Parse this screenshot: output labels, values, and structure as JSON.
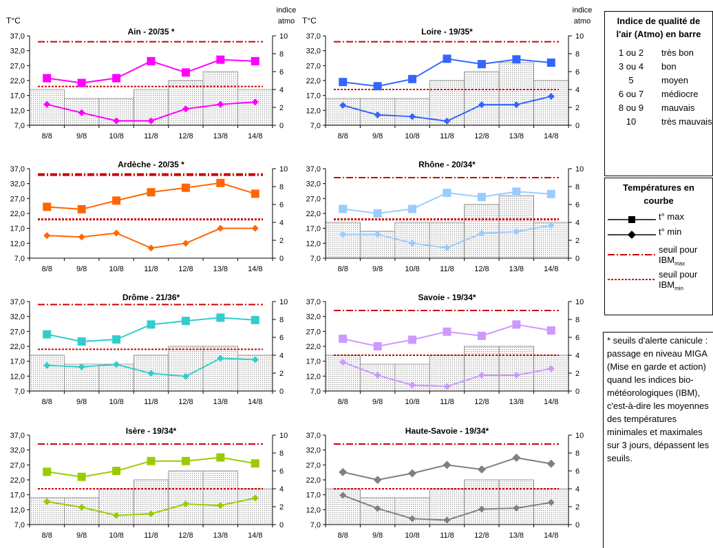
{
  "axis_labels": {
    "y_left": "T°C",
    "y_right_line1": "indice",
    "y_right_line2": "atmo"
  },
  "chart_data": [
    {
      "type": "bar+line",
      "title": "Ain - 20/35 *",
      "color": "#ff00ff",
      "marker": "square",
      "categories": [
        "8/8",
        "9/8",
        "10/8",
        "11/8",
        "12/8",
        "13/8",
        "14/8"
      ],
      "atmo": [
        4,
        3,
        3,
        4,
        5,
        6,
        4
      ],
      "tmax": [
        22.8,
        21.2,
        22.8,
        28.5,
        24.7,
        29.0,
        28.5
      ],
      "tmin": [
        14.0,
        11.2,
        8.5,
        8.5,
        12.5,
        14.0,
        14.8
      ],
      "ibm_max": 35,
      "ibm_min": 20,
      "ylim": [
        7,
        37
      ],
      "yticks": [
        "7,0",
        "12,0",
        "17,0",
        "22,0",
        "27,0",
        "32,0",
        "37,0"
      ],
      "y2lim": [
        0,
        10
      ],
      "y2ticks": [
        "0",
        "2",
        "4",
        "6",
        "8",
        "10"
      ]
    },
    {
      "type": "bar+line",
      "title": "Loire - 19/35*",
      "color": "#3366ff",
      "marker": "square",
      "categories": [
        "8/8",
        "9/8",
        "10/8",
        "11/8",
        "12/8",
        "13/8",
        "14/8"
      ],
      "atmo": [
        3,
        3,
        3,
        5,
        6,
        7,
        5
      ],
      "tmax": [
        21.5,
        20.1,
        22.5,
        29.3,
        27.5,
        29.1,
        28.0
      ],
      "tmin": [
        13.7,
        10.5,
        9.9,
        8.4,
        13.9,
        13.9,
        16.7
      ],
      "ibm_max": 35,
      "ibm_min": 19,
      "ylim": [
        7,
        37
      ],
      "yticks": [
        "7,0",
        "12,0",
        "17,0",
        "22,0",
        "27,0",
        "32,0",
        "37,0"
      ],
      "y2lim": [
        0,
        10
      ],
      "y2ticks": [
        "0",
        "2",
        "4",
        "6",
        "8",
        "10"
      ]
    },
    {
      "type": "bar+line",
      "title": "Ardèche - 20/35 *",
      "color": "#ff6600",
      "marker": "square",
      "categories": [
        "8/8",
        "9/8",
        "10/8",
        "11/8",
        "12/8",
        "13/8",
        "14/8"
      ],
      "atmo": [],
      "threshold_style": "thick",
      "tmax": [
        24.2,
        23.4,
        26.3,
        29.1,
        30.6,
        32.2,
        28.6
      ],
      "tmin": [
        14.6,
        14.1,
        15.4,
        10.4,
        12.0,
        17.0,
        17.0
      ],
      "ibm_max": 35,
      "ibm_min": 20,
      "ylim": [
        7,
        37
      ],
      "yticks": [
        "7,0",
        "12,0",
        "17,0",
        "22,0",
        "27,0",
        "32,0",
        "37,0"
      ],
      "y2lim": [
        0,
        10
      ],
      "y2ticks": [
        "0",
        "2",
        "4",
        "6",
        "8",
        "10"
      ]
    },
    {
      "type": "bar+line",
      "title": "Rhône - 20/34*",
      "color": "#99ccff",
      "marker": "square",
      "categories": [
        "8/8",
        "9/8",
        "10/8",
        "11/8",
        "12/8",
        "13/8",
        "14/8"
      ],
      "atmo": [
        4,
        3,
        4,
        4,
        6,
        7,
        4
      ],
      "threshold_min_style": "thick",
      "tmax": [
        23.5,
        22.0,
        23.5,
        28.9,
        27.5,
        29.3,
        28.5
      ],
      "tmin": [
        15.0,
        15.0,
        12.0,
        10.5,
        15.3,
        15.9,
        18.0
      ],
      "ibm_max": 34,
      "ibm_min": 20,
      "ylim": [
        7,
        37
      ],
      "yticks": [
        "7,0",
        "12,0",
        "17,0",
        "22,0",
        "27,0",
        "32,0",
        "37,0"
      ],
      "y2lim": [
        0,
        10
      ],
      "y2ticks": [
        "0",
        "2",
        "4",
        "6",
        "8",
        "10"
      ]
    },
    {
      "type": "bar+line",
      "title": "Drôme - 21/36*",
      "color": "#33cccc",
      "marker": "square",
      "categories": [
        "8/8",
        "9/8",
        "10/8",
        "11/8",
        "12/8",
        "13/8",
        "14/8"
      ],
      "atmo": [
        4,
        3,
        3,
        4,
        5,
        5,
        4
      ],
      "tmax": [
        26.0,
        23.6,
        24.3,
        29.3,
        30.5,
        31.6,
        30.8
      ],
      "tmin": [
        15.6,
        15.1,
        15.9,
        12.9,
        11.9,
        18.0,
        17.5
      ],
      "ibm_max": 36,
      "ibm_min": 21,
      "ylim": [
        7,
        37
      ],
      "yticks": [
        "7,0",
        "12,0",
        "17,0",
        "22,0",
        "27,0",
        "32,0",
        "37,0"
      ],
      "y2lim": [
        0,
        10
      ],
      "y2ticks": [
        "0",
        "2",
        "4",
        "6",
        "8",
        "10"
      ]
    },
    {
      "type": "bar+line",
      "title": "Savoie - 19/34*",
      "color": "#cc99ff",
      "marker": "square",
      "categories": [
        "8/8",
        "9/8",
        "10/8",
        "11/8",
        "12/8",
        "13/8",
        "14/8"
      ],
      "atmo": [
        4,
        3,
        3,
        4,
        5,
        5,
        4
      ],
      "tmax": [
        24.5,
        22.0,
        24.2,
        26.9,
        25.5,
        29.3,
        27.3
      ],
      "tmin": [
        16.7,
        12.3,
        9.0,
        8.5,
        12.3,
        12.3,
        14.5
      ],
      "ibm_max": 34,
      "ibm_min": 19,
      "ylim": [
        7,
        37
      ],
      "yticks": [
        "7,0",
        "12,0",
        "17,0",
        "22,0",
        "27,0",
        "32,0",
        "37,0"
      ],
      "y2lim": [
        0,
        10
      ],
      "y2ticks": [
        "0",
        "2",
        "4",
        "6",
        "8",
        "10"
      ]
    },
    {
      "type": "bar+line",
      "title": "Isère - 19/34*",
      "color": "#99cc00",
      "marker": "square",
      "categories": [
        "8/8",
        "9/8",
        "10/8",
        "11/8",
        "12/8",
        "13/8",
        "14/8"
      ],
      "atmo": [
        3,
        3,
        4,
        5,
        6,
        6,
        4
      ],
      "tmax": [
        24.7,
        23.0,
        25.0,
        28.3,
        28.3,
        29.5,
        27.5
      ],
      "tmin": [
        14.7,
        12.8,
        10.1,
        10.6,
        13.9,
        13.4,
        15.9
      ],
      "ibm_max": 34,
      "ibm_min": 19,
      "ylim": [
        7,
        37
      ],
      "yticks": [
        "7,0",
        "12,0",
        "17,0",
        "22,0",
        "27,0",
        "32,0",
        "37,0"
      ],
      "y2lim": [
        0,
        10
      ],
      "y2ticks": [
        "0",
        "2",
        "4",
        "6",
        "8",
        "10"
      ]
    },
    {
      "type": "bar+line",
      "title": "Haute-Savoie - 19/34*",
      "color": "#808080",
      "marker": "diamond",
      "categories": [
        "8/8",
        "9/8",
        "10/8",
        "11/8",
        "12/8",
        "13/8",
        "14/8"
      ],
      "atmo": [
        4,
        3,
        3,
        4,
        5,
        5,
        4
      ],
      "tmax": [
        24.6,
        22.0,
        24.2,
        27.0,
        25.5,
        29.4,
        27.4
      ],
      "tmin": [
        16.8,
        12.4,
        9.0,
        8.5,
        12.2,
        12.5,
        14.4
      ],
      "ibm_max": 34,
      "ibm_min": 19,
      "ylim": [
        7,
        37
      ],
      "yticks": [
        "7,0",
        "12,0",
        "17,0",
        "22,0",
        "27,0",
        "32,0",
        "37,0"
      ],
      "y2lim": [
        0,
        10
      ],
      "y2ticks": [
        "0",
        "2",
        "4",
        "6",
        "8",
        "10"
      ]
    }
  ],
  "legend_atmo": {
    "title_line1": "Indice de qualité de",
    "title_line2": "l'air (Atmo) en barre",
    "rows": [
      {
        "code": "1 ou 2",
        "quality": "très bon"
      },
      {
        "code": "3 ou 4",
        "quality": "bon"
      },
      {
        "code": "5",
        "quality": "moyen"
      },
      {
        "code": "6 ou 7",
        "quality": "médiocre"
      },
      {
        "code": "8 ou 9",
        "quality": "mauvais"
      },
      {
        "code": "10",
        "quality": "très mauvais"
      }
    ]
  },
  "legend_temp": {
    "title_line1": "Températures en",
    "title_line2": "courbe",
    "tmax": "t° max",
    "tmin": "t° min",
    "seuil": "seuil pour",
    "ibm": "IBM",
    "sub_max": "max",
    "sub_min": "min"
  },
  "note": "* seuils d'alerte canicule : passage en niveau MIGA (Mise en garde et action) quand les indices bio-météorologiques (IBM), c'est-à-dire les moyennes des températures minimales et maximales sur 3 jours, dépassent les seuils.",
  "colors": {
    "bar_fill": "#e8e8e8",
    "threshold": "#cc0000"
  }
}
